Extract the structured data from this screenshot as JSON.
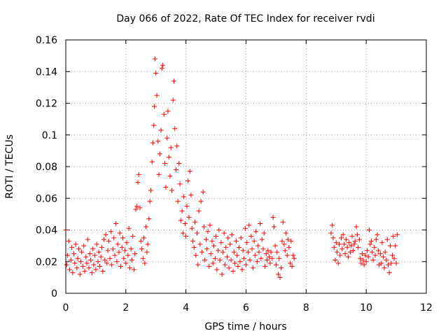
{
  "chart_data": {
    "type": "scatter",
    "title": "Day 066 of 2022, Rate Of TEC Index for receiver rvdi",
    "xlabel": "GPS time / hours",
    "ylabel": "ROTI / TECUs",
    "xlim": [
      0,
      12
    ],
    "ylim": [
      0,
      0.16
    ],
    "xticks": [
      0,
      2,
      4,
      6,
      8,
      10,
      12
    ],
    "yticks": [
      0,
      0.02,
      0.04,
      0.06,
      0.08,
      0.1,
      0.12,
      0.14,
      0.16
    ],
    "xtick_labels": [
      "0",
      "2",
      "4",
      "6",
      "8",
      "10",
      "12"
    ],
    "ytick_labels": [
      "0",
      "0.02",
      "0.04",
      "0.06",
      "0.08",
      "0.1",
      "0.12",
      "0.14",
      "0.16"
    ],
    "grid": true,
    "marker": "+",
    "color": "#ff0000",
    "series": [
      {
        "name": "ROTI",
        "points": [
          [
            0.0,
            0.04
          ],
          [
            0.03,
            0.018
          ],
          [
            0.06,
            0.024
          ],
          [
            0.1,
            0.033
          ],
          [
            0.13,
            0.015
          ],
          [
            0.17,
            0.021
          ],
          [
            0.2,
            0.029
          ],
          [
            0.23,
            0.013
          ],
          [
            0.27,
            0.025
          ],
          [
            0.3,
            0.019
          ],
          [
            0.33,
            0.031
          ],
          [
            0.37,
            0.016
          ],
          [
            0.4,
            0.022
          ],
          [
            0.43,
            0.028
          ],
          [
            0.47,
            0.012
          ],
          [
            0.5,
            0.02
          ],
          [
            0.53,
            0.026
          ],
          [
            0.57,
            0.017
          ],
          [
            0.6,
            0.03
          ],
          [
            0.63,
            0.014
          ],
          [
            0.67,
            0.023
          ],
          [
            0.7,
            0.019
          ],
          [
            0.73,
            0.034
          ],
          [
            0.77,
            0.016
          ],
          [
            0.8,
            0.025
          ],
          [
            0.83,
            0.021
          ],
          [
            0.87,
            0.013
          ],
          [
            0.9,
            0.028
          ],
          [
            0.93,
            0.018
          ],
          [
            0.97,
            0.024
          ],
          [
            1.0,
            0.015
          ],
          [
            1.03,
            0.031
          ],
          [
            1.07,
            0.02
          ],
          [
            1.1,
            0.026
          ],
          [
            1.13,
            0.017
          ],
          [
            1.17,
            0.023
          ],
          [
            1.2,
            0.029
          ],
          [
            1.23,
            0.014
          ],
          [
            1.27,
            0.034
          ],
          [
            1.3,
            0.021
          ],
          [
            1.33,
            0.037
          ],
          [
            1.37,
            0.019
          ],
          [
            1.4,
            0.027
          ],
          [
            1.43,
            0.033
          ],
          [
            1.47,
            0.022
          ],
          [
            1.5,
            0.039
          ],
          [
            1.53,
            0.018
          ],
          [
            1.57,
            0.028
          ],
          [
            1.6,
            0.035
          ],
          [
            1.63,
            0.024
          ],
          [
            1.67,
            0.044
          ],
          [
            1.7,
            0.02
          ],
          [
            1.73,
            0.031
          ],
          [
            1.77,
            0.026
          ],
          [
            1.8,
            0.038
          ],
          [
            1.83,
            0.017
          ],
          [
            1.87,
            0.029
          ],
          [
            1.9,
            0.035
          ],
          [
            1.93,
            0.022
          ],
          [
            1.97,
            0.027
          ],
          [
            2.0,
            0.019
          ],
          [
            2.03,
            0.032
          ],
          [
            2.07,
            0.024
          ],
          [
            2.1,
            0.041
          ],
          [
            2.13,
            0.016
          ],
          [
            2.17,
            0.028
          ],
          [
            2.2,
            0.021
          ],
          [
            2.23,
            0.036
          ],
          [
            2.27,
            0.015
          ],
          [
            2.3,
            0.025
          ],
          [
            2.33,
            0.053
          ],
          [
            2.37,
            0.055
          ],
          [
            2.4,
            0.07
          ],
          [
            2.43,
            0.075
          ],
          [
            2.47,
            0.054
          ],
          [
            2.5,
            0.033
          ],
          [
            2.53,
            0.028
          ],
          [
            2.57,
            0.022
          ],
          [
            2.6,
            0.035
          ],
          [
            2.63,
            0.019
          ],
          [
            2.67,
            0.042
          ],
          [
            2.7,
            0.026
          ],
          [
            2.73,
            0.031
          ],
          [
            2.77,
            0.047
          ],
          [
            2.8,
            0.058
          ],
          [
            2.83,
            0.065
          ],
          [
            2.87,
            0.083
          ],
          [
            2.9,
            0.095
          ],
          [
            2.93,
            0.106
          ],
          [
            2.95,
            0.118
          ],
          [
            2.97,
            0.148
          ],
          [
            3.0,
            0.139
          ],
          [
            3.03,
            0.125
          ],
          [
            3.07,
            0.096
          ],
          [
            3.1,
            0.075
          ],
          [
            3.13,
            0.088
          ],
          [
            3.17,
            0.103
          ],
          [
            3.2,
            0.142
          ],
          [
            3.23,
            0.144
          ],
          [
            3.27,
            0.113
          ],
          [
            3.3,
            0.082
          ],
          [
            3.33,
            0.067
          ],
          [
            3.37,
            0.098
          ],
          [
            3.4,
            0.115
          ],
          [
            3.43,
            0.086
          ],
          [
            3.47,
            0.074
          ],
          [
            3.5,
            0.092
          ],
          [
            3.53,
            0.065
          ],
          [
            3.57,
            0.122
          ],
          [
            3.6,
            0.134
          ],
          [
            3.63,
            0.104
          ],
          [
            3.67,
            0.078
          ],
          [
            3.7,
            0.093
          ],
          [
            3.73,
            0.058
          ],
          [
            3.77,
            0.082
          ],
          [
            3.8,
            0.069
          ],
          [
            3.83,
            0.046
          ],
          [
            3.87,
            0.052
          ],
          [
            3.9,
            0.038
          ],
          [
            3.93,
            0.061
          ],
          [
            3.97,
            0.044
          ],
          [
            4.0,
            0.036
          ],
          [
            4.03,
            0.055
          ],
          [
            4.07,
            0.071
          ],
          [
            4.1,
            0.048
          ],
          [
            4.13,
            0.077
          ],
          [
            4.17,
            0.062
          ],
          [
            4.2,
            0.041
          ],
          [
            4.23,
            0.033
          ],
          [
            4.27,
            0.029
          ],
          [
            4.3,
            0.045
          ],
          [
            4.33,
            0.024
          ],
          [
            4.37,
            0.038
          ],
          [
            4.4,
            0.018
          ],
          [
            4.43,
            0.052
          ],
          [
            4.47,
            0.031
          ],
          [
            4.5,
            0.058
          ],
          [
            4.53,
            0.026
          ],
          [
            4.57,
            0.064
          ],
          [
            4.6,
            0.042
          ],
          [
            4.63,
            0.021
          ],
          [
            4.67,
            0.034
          ],
          [
            4.7,
            0.028
          ],
          [
            4.73,
            0.039
          ],
          [
            4.77,
            0.017
          ],
          [
            4.8,
            0.043
          ],
          [
            4.83,
            0.025
          ],
          [
            4.87,
            0.033
          ],
          [
            4.9,
            0.019
          ],
          [
            4.93,
            0.03
          ],
          [
            4.97,
            0.022
          ],
          [
            5.0,
            0.036
          ],
          [
            5.03,
            0.015
          ],
          [
            5.07,
            0.027
          ],
          [
            5.1,
            0.04
          ],
          [
            5.13,
            0.021
          ],
          [
            5.17,
            0.032
          ],
          [
            5.2,
            0.012
          ],
          [
            5.23,
            0.026
          ],
          [
            5.27,
            0.038
          ],
          [
            5.3,
            0.018
          ],
          [
            5.33,
            0.029
          ],
          [
            5.37,
            0.023
          ],
          [
            5.4,
            0.035
          ],
          [
            5.43,
            0.016
          ],
          [
            5.47,
            0.031
          ],
          [
            5.5,
            0.021
          ],
          [
            5.53,
            0.037
          ],
          [
            5.57,
            0.014
          ],
          [
            5.6,
            0.026
          ],
          [
            5.63,
            0.019
          ],
          [
            5.67,
            0.033
          ],
          [
            5.7,
            0.024
          ],
          [
            5.73,
            0.017
          ],
          [
            5.77,
            0.029
          ],
          [
            5.8,
            0.02
          ],
          [
            5.83,
            0.035
          ],
          [
            5.87,
            0.015
          ],
          [
            5.9,
            0.027
          ],
          [
            5.93,
            0.022
          ],
          [
            5.97,
            0.041
          ],
          [
            6.0,
            0.018
          ],
          [
            6.03,
            0.032
          ],
          [
            6.07,
            0.026
          ],
          [
            6.1,
            0.043
          ],
          [
            6.13,
            0.021
          ],
          [
            6.17,
            0.036
          ],
          [
            6.2,
            0.028
          ],
          [
            6.23,
            0.016
          ],
          [
            6.27,
            0.033
          ],
          [
            6.3,
            0.024
          ],
          [
            6.33,
            0.039
          ],
          [
            6.37,
            0.02
          ],
          [
            6.4,
            0.03
          ],
          [
            6.43,
            0.026
          ],
          [
            6.47,
            0.044
          ],
          [
            6.5,
            0.022
          ],
          [
            6.53,
            0.034
          ],
          [
            6.57,
            0.028
          ],
          [
            6.6,
            0.038
          ],
          [
            6.63,
            0.017
          ],
          [
            6.67,
            0.025
          ],
          [
            6.7,
            0.021
          ],
          [
            6.73,
            0.027
          ],
          [
            6.77,
            0.023
          ],
          [
            6.8,
            0.019
          ],
          [
            6.83,
            0.026
          ],
          [
            6.87,
            0.022
          ],
          [
            6.9,
            0.048
          ],
          [
            6.93,
            0.042
          ],
          [
            6.97,
            0.03
          ],
          [
            7.0,
            0.018
          ],
          [
            7.03,
            0.026
          ],
          [
            7.07,
            0.012
          ],
          [
            7.1,
            0.022
          ],
          [
            7.13,
            0.01
          ],
          [
            7.17,
            0.016
          ],
          [
            7.2,
            0.033
          ],
          [
            7.23,
            0.045
          ],
          [
            7.27,
            0.031
          ],
          [
            7.3,
            0.027
          ],
          [
            7.33,
            0.038
          ],
          [
            7.37,
            0.024
          ],
          [
            7.4,
            0.034
          ],
          [
            7.43,
            0.029
          ],
          [
            7.47,
            0.019
          ],
          [
            7.5,
            0.033
          ],
          [
            7.53,
            0.017
          ],
          [
            7.57,
            0.024
          ],
          [
            7.6,
            0.022
          ],
          [
            8.83,
            0.038
          ],
          [
            8.87,
            0.043
          ],
          [
            8.9,
            0.035
          ],
          [
            8.93,
            0.029
          ],
          [
            8.97,
            0.021
          ],
          [
            9.0,
            0.032
          ],
          [
            9.03,
            0.026
          ],
          [
            9.07,
            0.019
          ],
          [
            9.1,
            0.031
          ],
          [
            9.13,
            0.024
          ],
          [
            9.17,
            0.035
          ],
          [
            9.2,
            0.028
          ],
          [
            9.23,
            0.037
          ],
          [
            9.27,
            0.031
          ],
          [
            9.3,
            0.025
          ],
          [
            9.33,
            0.034
          ],
          [
            9.37,
            0.029
          ],
          [
            9.4,
            0.023
          ],
          [
            9.43,
            0.032
          ],
          [
            9.47,
            0.026
          ],
          [
            9.5,
            0.03
          ],
          [
            9.53,
            0.036
          ],
          [
            9.57,
            0.027
          ],
          [
            9.6,
            0.031
          ],
          [
            9.63,
            0.033
          ],
          [
            9.67,
            0.042
          ],
          [
            9.7,
            0.037
          ],
          [
            9.73,
            0.029
          ],
          [
            9.77,
            0.034
          ],
          [
            9.8,
            0.022
          ],
          [
            9.83,
            0.019
          ],
          [
            9.87,
            0.025
          ],
          [
            9.9,
            0.021
          ],
          [
            9.93,
            0.018
          ],
          [
            9.97,
            0.024
          ],
          [
            10.0,
            0.02
          ],
          [
            10.03,
            0.027
          ],
          [
            10.07,
            0.023
          ],
          [
            10.1,
            0.04
          ],
          [
            10.13,
            0.031
          ],
          [
            10.17,
            0.033
          ],
          [
            10.2,
            0.026
          ],
          [
            10.23,
            0.021
          ],
          [
            10.27,
            0.029
          ],
          [
            10.3,
            0.024
          ],
          [
            10.33,
            0.034
          ],
          [
            10.37,
            0.037
          ],
          [
            10.4,
            0.027
          ],
          [
            10.43,
            0.018
          ],
          [
            10.47,
            0.025
          ],
          [
            10.5,
            0.019
          ],
          [
            10.53,
            0.032
          ],
          [
            10.57,
            0.023
          ],
          [
            10.6,
            0.016
          ],
          [
            10.63,
            0.026
          ],
          [
            10.67,
            0.021
          ],
          [
            10.7,
            0.034
          ],
          [
            10.73,
            0.018
          ],
          [
            10.77,
            0.013
          ],
          [
            10.8,
            0.03
          ],
          [
            10.83,
            0.019
          ],
          [
            10.87,
            0.024
          ],
          [
            10.9,
            0.036
          ],
          [
            10.93,
            0.022
          ],
          [
            10.97,
            0.03
          ],
          [
            11.0,
            0.019
          ],
          [
            11.03,
            0.037
          ]
        ]
      }
    ]
  }
}
